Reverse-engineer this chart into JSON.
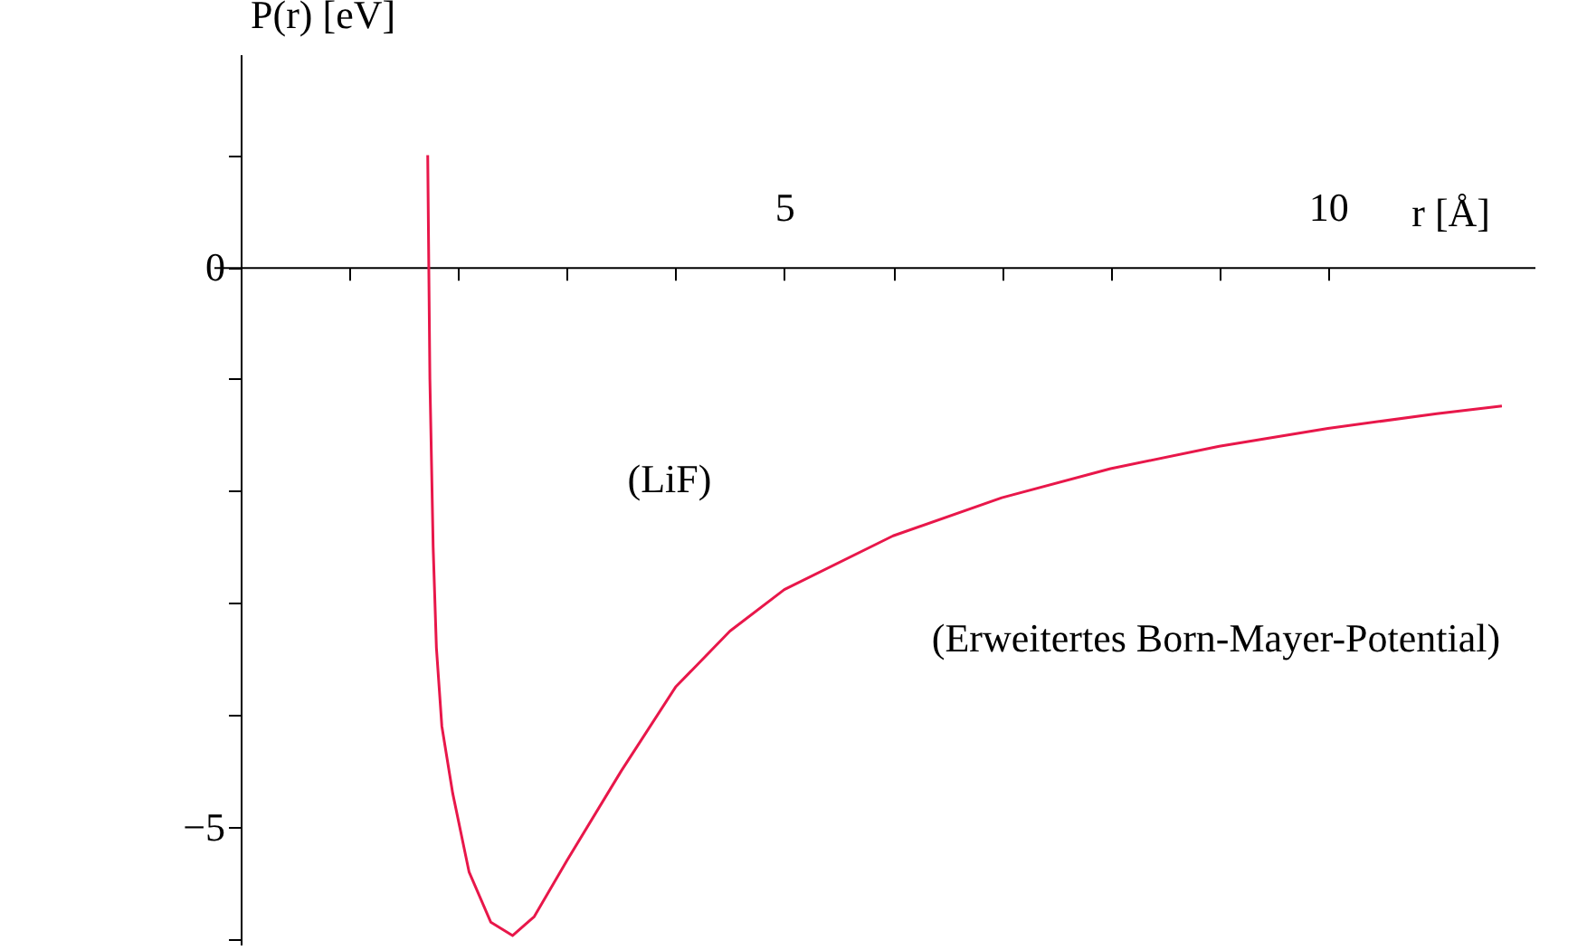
{
  "chart_data": {
    "type": "line",
    "xlabel": "r [Å]",
    "ylabel": "P(r) [eV]",
    "x": [
      1.72,
      1.74,
      1.77,
      1.8,
      1.85,
      1.95,
      2.1,
      2.3,
      2.5,
      2.7,
      3.0,
      3.5,
      4.0,
      4.5,
      5.0,
      6.0,
      7.0,
      8.0,
      9.0,
      10.0,
      11.0,
      11.6
    ],
    "series": [
      {
        "color": "#e8174a",
        "values": [
          1.0,
          -1.0,
          -2.5,
          -3.4,
          -4.1,
          -4.7,
          -5.4,
          -5.85,
          -5.97,
          -5.8,
          -5.3,
          -4.5,
          -3.75,
          -3.25,
          -2.88,
          -2.4,
          -2.06,
          -1.8,
          -1.6,
          -1.44,
          -1.31,
          -1.24
        ]
      }
    ],
    "xlim": [
      -0.25,
      11.9
    ],
    "ylim": [
      -6.05,
      1.9
    ],
    "xticks": [
      {
        "value": 1,
        "label": null
      },
      {
        "value": 2,
        "label": null
      },
      {
        "value": 3,
        "label": null
      },
      {
        "value": 4,
        "label": null
      },
      5,
      {
        "value": 6,
        "label": null
      },
      {
        "value": 7,
        "label": null
      },
      {
        "value": 8,
        "label": null
      },
      {
        "value": 9,
        "label": null
      },
      10
    ],
    "yticks": [
      {
        "value": -6,
        "label": null
      },
      -5,
      {
        "value": -4,
        "label": null
      },
      {
        "value": -3,
        "label": null
      },
      {
        "value": -2,
        "label": null
      },
      {
        "value": -1,
        "label": null
      },
      0,
      {
        "value": 1,
        "label": null
      }
    ],
    "annotations": [
      "(LiF)",
      "(Erweitertes Born-Mayer-Potential)"
    ],
    "grid": false,
    "marker": "none",
    "line_style": "solid"
  }
}
